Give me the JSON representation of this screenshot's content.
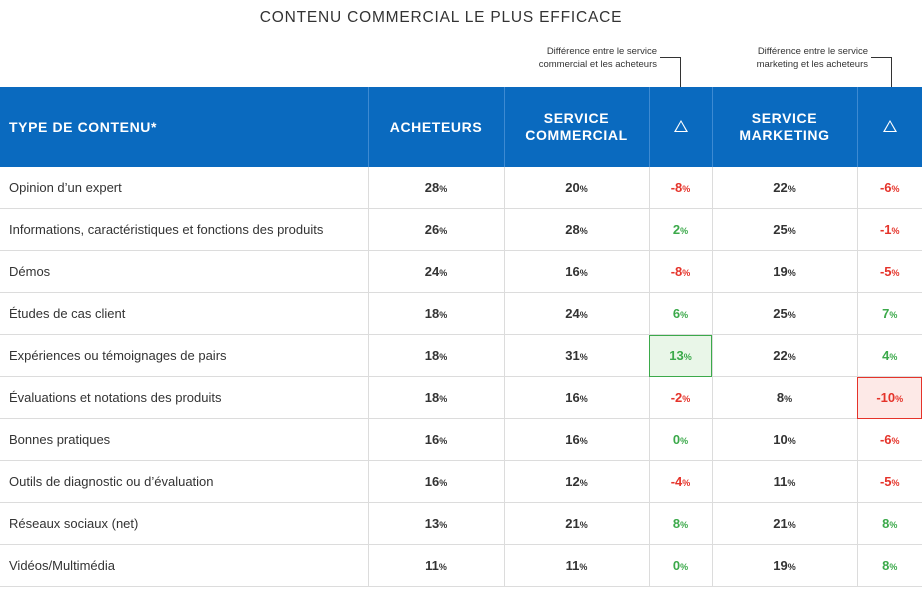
{
  "title": "CONTENU COMMERCIAL LE PLUS EFFICACE",
  "notes": {
    "sales": "Différence entre le service commercial et les acheteurs",
    "marketing": "Différence entre le service marketing et les acheteurs"
  },
  "headers": {
    "type": "TYPE DE CONTENU*",
    "buyers": "ACHETEURS",
    "sales": "SERVICE COMMERCIAL",
    "marketing": "SERVICE MARKETING"
  },
  "colors": {
    "header_bg": "#0a6abf",
    "positive": "#3ba94a",
    "negative": "#e5332a"
  },
  "rows": [
    {
      "label": "Opinion d’un expert",
      "buyers": "28",
      "sales": "20",
      "sales_diff": "-8",
      "marketing": "22",
      "marketing_diff": "-6"
    },
    {
      "label": "Informations, caractéristiques et fonctions des produits",
      "buyers": "26",
      "sales": "28",
      "sales_diff": "2",
      "marketing": "25",
      "marketing_diff": "-1"
    },
    {
      "label": "Démos",
      "buyers": "24",
      "sales": "16",
      "sales_diff": "-8",
      "marketing": "19",
      "marketing_diff": "-5"
    },
    {
      "label": "Études de cas client",
      "buyers": "18",
      "sales": "24",
      "sales_diff": "6",
      "marketing": "25",
      "marketing_diff": "7"
    },
    {
      "label": "Expériences ou témoignages de pairs",
      "buyers": "18",
      "sales": "31",
      "sales_diff": "13",
      "marketing": "22",
      "marketing_diff": "4"
    },
    {
      "label": "Évaluations et notations des produits",
      "buyers": "18",
      "sales": "16",
      "sales_diff": "-2",
      "marketing": "8",
      "marketing_diff": "-10"
    },
    {
      "label": "Bonnes pratiques",
      "buyers": "16",
      "sales": "16",
      "sales_diff": "0",
      "marketing": "10",
      "marketing_diff": "-6"
    },
    {
      "label": "Outils de diagnostic ou d’évaluation",
      "buyers": "16",
      "sales": "12",
      "sales_diff": "-4",
      "marketing": "11",
      "marketing_diff": "-5"
    },
    {
      "label": "Réseaux sociaux (net)",
      "buyers": "13",
      "sales": "21",
      "sales_diff": "8",
      "marketing": "21",
      "marketing_diff": "8"
    },
    {
      "label": "Vidéos/Multimédia",
      "buyers": "11",
      "sales": "11",
      "sales_diff": "0",
      "marketing": "19",
      "marketing_diff": "8"
    }
  ]
}
